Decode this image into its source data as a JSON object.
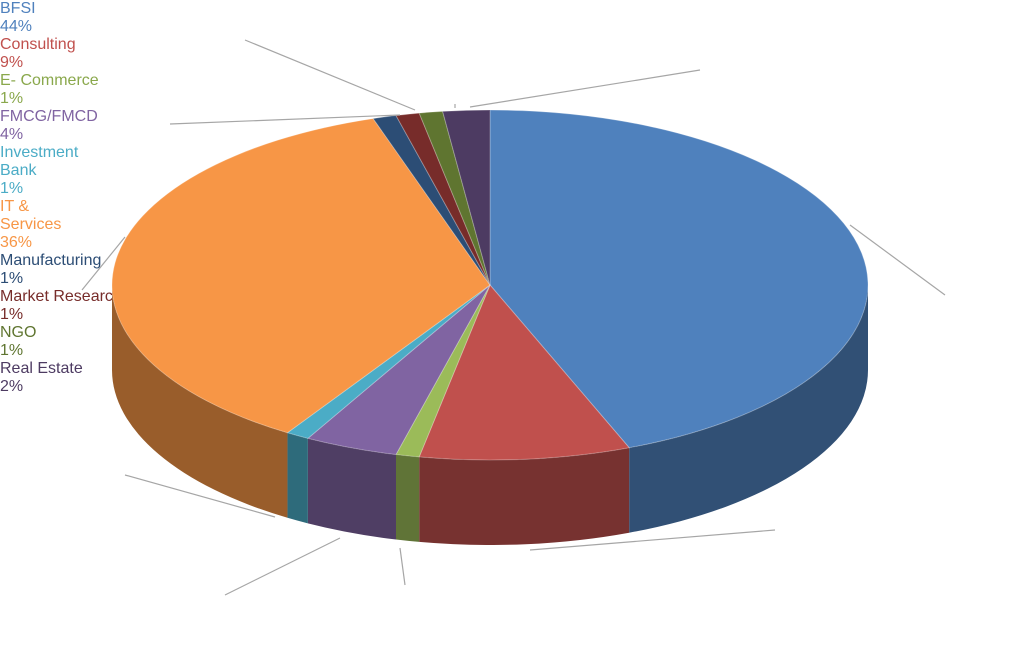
{
  "chart_data": {
    "type": "pie3d",
    "categories": [
      "BFSI",
      "Consulting",
      "E- Commerce",
      "FMCG/FMCD",
      "Investment Bank",
      "IT & Services",
      "Manufacturing",
      "Market Research",
      "NGO",
      "Real Estate"
    ],
    "values": [
      44,
      9,
      1,
      4,
      1,
      36,
      1,
      1,
      1,
      2
    ],
    "value_labels": [
      "44%",
      "9%",
      "1%",
      "4%",
      "1%",
      "36%",
      "1%",
      "1%",
      "1%",
      "2%"
    ],
    "colors": [
      "#4f81bd",
      "#c0504d",
      "#9bbb59",
      "#8064a2",
      "#4bacc6",
      "#f79646",
      "#2c4d75",
      "#772c2a",
      "#5f7530",
      "#4d3b62"
    ]
  }
}
